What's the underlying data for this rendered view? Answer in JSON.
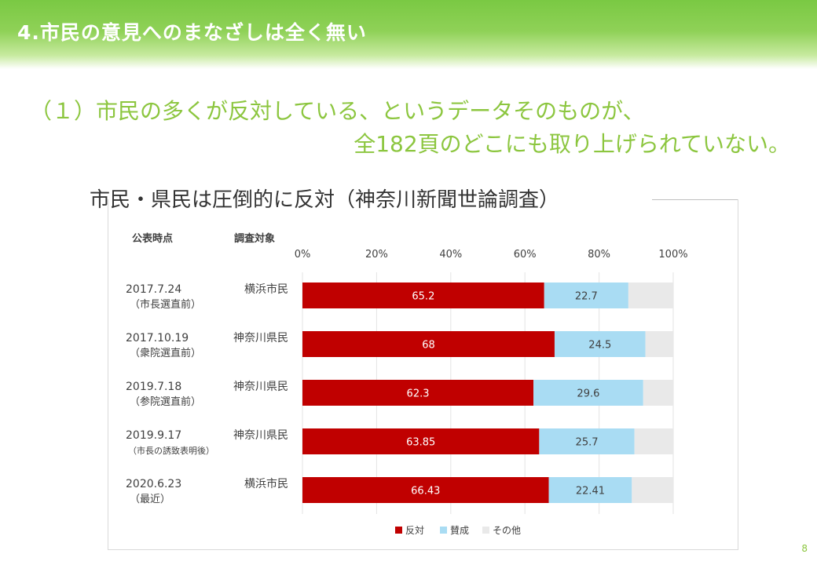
{
  "slide": {
    "title": "4.市民の意見へのまなざしは全く無い",
    "subtitle_line1": "（１）市民の多くが反対している、というデータそのものが、",
    "subtitle_line2": "全182頁のどこにも取り上げられていない。",
    "page_number": "8"
  },
  "chart_data": {
    "type": "bar",
    "orientation": "horizontal",
    "stacked": "percent",
    "title": "市民・県民は圧倒的に反対（神奈川新聞世論調査）",
    "column_headers": [
      "公表時点",
      "調査対象"
    ],
    "x_ticks": [
      "0%",
      "20%",
      "40%",
      "60%",
      "80%",
      "100%"
    ],
    "xlim": [
      0,
      100
    ],
    "legend_position": "bottom",
    "categories": [
      {
        "date": "2017.7.24",
        "note": "（市長選直前）",
        "target": "横浜市民"
      },
      {
        "date": "2017.10.19",
        "note": "（衆院選直前）",
        "target": "神奈川県民"
      },
      {
        "date": "2019.7.18",
        "note": "（参院選直前）",
        "target": "神奈川県民"
      },
      {
        "date": "2019.9.17",
        "note": "（市長の誘致表明後）",
        "target": "神奈川県民"
      },
      {
        "date": "2020.6.23",
        "note": "（最近）",
        "target": "横浜市民"
      }
    ],
    "series": [
      {
        "name": "反対",
        "color": "#c00000",
        "values": [
          65.2,
          68,
          62.3,
          63.85,
          66.43
        ],
        "labels": [
          "65.2",
          "68",
          "62.3",
          "63.85",
          "66.43"
        ],
        "label_color": "#ffffff"
      },
      {
        "name": "賛成",
        "color": "#a9dcf3",
        "values": [
          22.7,
          24.5,
          29.6,
          25.7,
          22.41
        ],
        "labels": [
          "22.7",
          "24.5",
          "29.6",
          "25.7",
          "22.41"
        ],
        "label_color": "#404040"
      },
      {
        "name": "その他",
        "color": "#e9e9e9",
        "values": [
          12.1,
          7.5,
          8.1,
          10.45,
          11.16
        ],
        "labels": [],
        "label_color": "#404040"
      }
    ]
  }
}
